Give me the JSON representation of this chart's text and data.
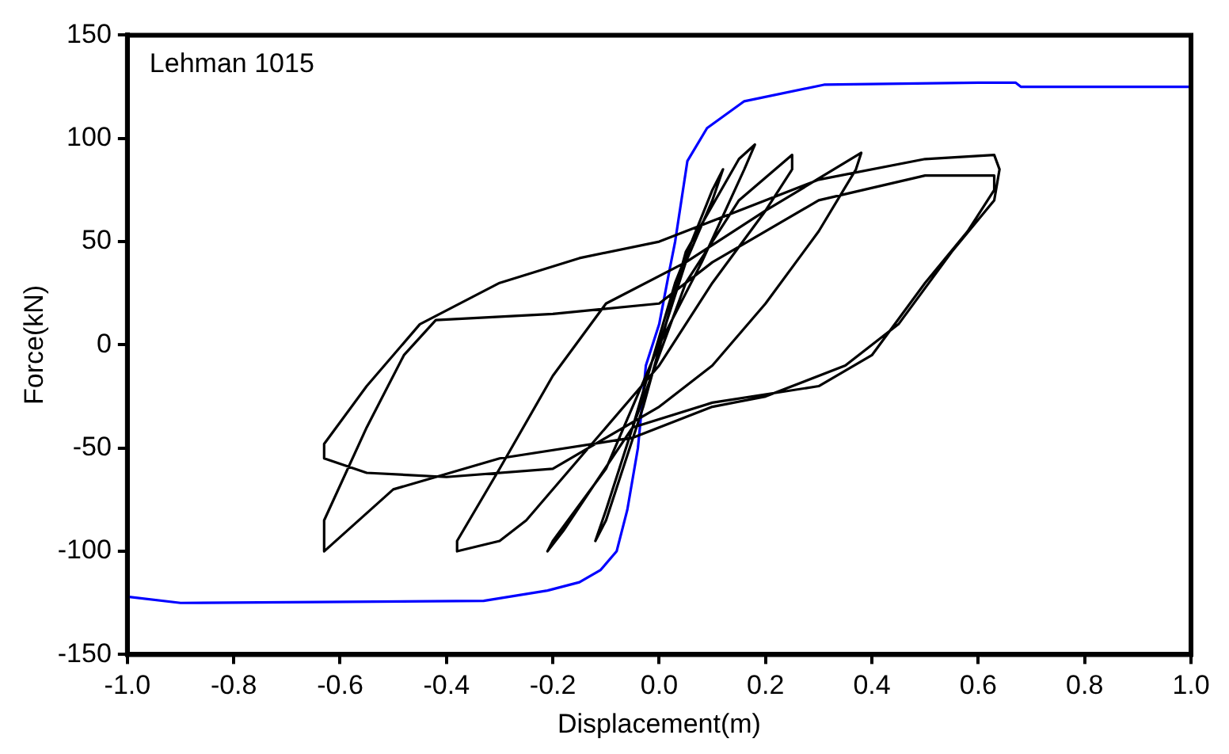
{
  "chart_data": {
    "type": "line",
    "xlabel": "Displacement(m)",
    "ylabel": "Force(kN)",
    "annotations": [
      "Lehman 1015"
    ],
    "xlim": [
      -1.0,
      1.0
    ],
    "xticks": [
      {
        "value": -1.0,
        "label": "-1.0"
      },
      -0.8,
      -0.6,
      -0.4,
      -0.2,
      {
        "value": 0,
        "label": "0.0"
      },
      0.2,
      0.4,
      0.6,
      0.8,
      {
        "value": 1.0,
        "label": "1.0"
      }
    ],
    "ylim": [
      -150,
      150
    ],
    "yticks": [
      -150,
      -100,
      -50,
      0,
      50,
      100,
      150
    ],
    "grid": false,
    "legend": false,
    "marker": "none",
    "line_style": "solid",
    "series": [
      {
        "color": "#000000",
        "x": [
          0,
          0.05,
          0.1,
          0.12,
          0.1,
          0.03,
          -0.05,
          -0.1,
          -0.12,
          -0.1,
          -0.03,
          0.05,
          0.15,
          0.18,
          0.16,
          0.08,
          0,
          -0.1,
          -0.2,
          -0.21,
          -0.18,
          -0.05,
          0.05,
          0.15,
          0.25,
          0.25,
          0.2,
          0.1,
          0,
          -0.15,
          -0.25,
          -0.3,
          -0.38,
          -0.38,
          -0.3,
          -0.2,
          -0.1,
          0.05,
          0.2,
          0.38,
          0.37,
          0.3,
          0.2,
          0.1,
          0,
          -0.2,
          -0.4,
          -0.55,
          -0.63,
          -0.63,
          -0.55,
          -0.45,
          -0.3,
          -0.15,
          0,
          0.15,
          0.3,
          0.5,
          0.63,
          0.64,
          0.63,
          0.55,
          0.45,
          0.35,
          0.2,
          0.1,
          -0.05,
          -0.3,
          -0.5,
          -0.63,
          -0.63,
          -0.55,
          -0.48,
          -0.42,
          -0.2,
          0,
          0.1,
          0.3,
          0.5,
          0.63,
          0.63,
          0.58,
          0.5,
          0.4,
          0.3,
          0.1,
          -0.05
        ],
        "values": [
          0,
          40,
          70,
          85,
          75,
          30,
          -40,
          -80,
          -95,
          -85,
          -30,
          45,
          90,
          97,
          85,
          40,
          0,
          -60,
          -95,
          -100,
          -90,
          -40,
          30,
          70,
          92,
          85,
          65,
          30,
          -10,
          -55,
          -85,
          -95,
          -100,
          -95,
          -60,
          -15,
          20,
          40,
          65,
          93,
          85,
          55,
          20,
          -10,
          -30,
          -60,
          -64,
          -62,
          -55,
          -48,
          -20,
          10,
          30,
          42,
          50,
          65,
          80,
          90,
          92,
          85,
          70,
          45,
          10,
          -10,
          -25,
          -30,
          -45,
          -55,
          -70,
          -100,
          -85,
          -40,
          -5,
          12,
          15,
          20,
          40,
          70,
          82,
          82,
          75,
          55,
          30,
          -5,
          -20,
          -28,
          -40
        ]
      },
      {
        "color": "#0000ff",
        "x": [
          -1.0,
          -0.9,
          -0.33,
          -0.21,
          -0.15,
          -0.11,
          -0.08,
          -0.06,
          -0.04,
          -0.025,
          0,
          0.02,
          0.03,
          0.053,
          0.09,
          0.16,
          0.31,
          0.6,
          0.67,
          0.68,
          1.0
        ],
        "values": [
          -122,
          -125,
          -124,
          -119,
          -115,
          -109,
          -100,
          -80,
          -50,
          -10,
          10,
          37,
          50,
          89,
          105,
          118,
          126,
          127,
          127,
          125,
          125
        ]
      }
    ]
  }
}
